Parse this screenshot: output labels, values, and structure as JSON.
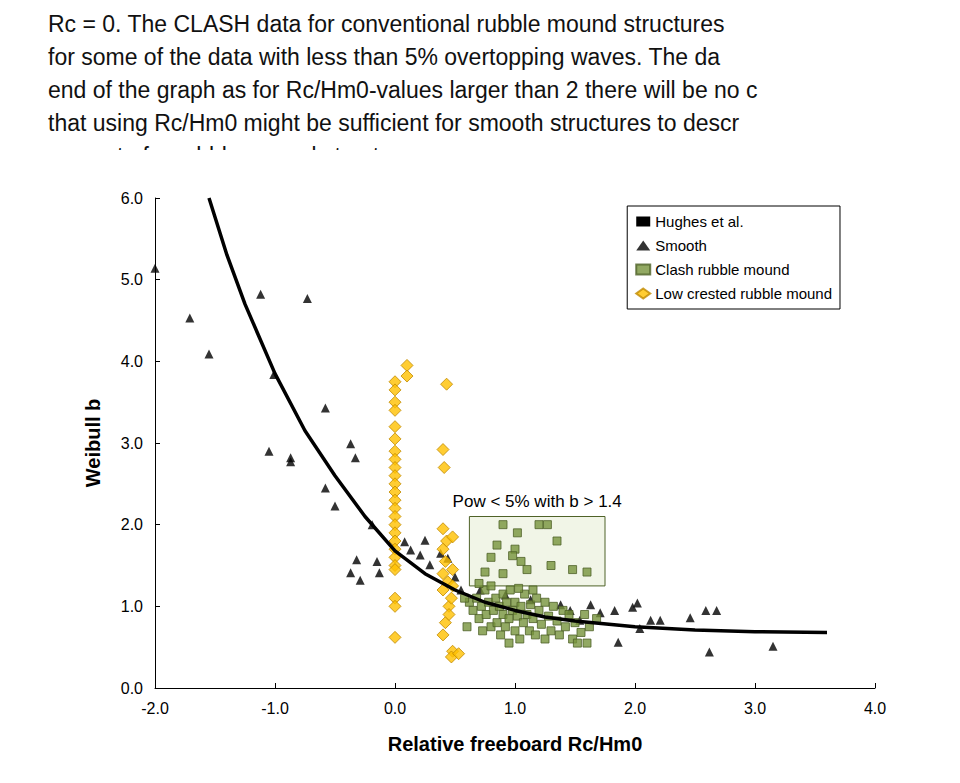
{
  "text_lines": [
    "Rc = 0. The CLASH data for conventional rubble mound structures",
    "for some of the data with less than 5% overtopping waves. The da",
    "end of the graph as for Rc/Hm0-values larger than 2 there will be no c",
    "that using Rc/Hm0 might be sufficient for smooth structures to descr",
    "accurate for rubble mound structures."
  ],
  "chart_data": {
    "type": "scatter",
    "x_label": "Relative freeboard Rc/Hm0",
    "y_label": "Weibull b",
    "xlim": [
      -2.0,
      4.0
    ],
    "xticks": [
      {
        "value": -2,
        "label": "-2.0"
      },
      {
        "value": -1,
        "label": "-1.0"
      },
      {
        "value": 0,
        "label": "0.0"
      },
      {
        "value": 1,
        "label": "1.0"
      },
      {
        "value": 2,
        "label": "2.0"
      },
      {
        "value": 3,
        "label": "3.0"
      },
      {
        "value": 4,
        "label": "4.0"
      }
    ],
    "ylim": [
      0.0,
      6.0
    ],
    "yticks": [
      {
        "value": 0,
        "label": "0.0"
      },
      {
        "value": 1,
        "label": "1.0"
      },
      {
        "value": 2,
        "label": "2.0"
      },
      {
        "value": 3,
        "label": "3.0"
      },
      {
        "value": 4,
        "label": "4.0"
      },
      {
        "value": 5,
        "label": "5.0"
      },
      {
        "value": 6,
        "label": "6.0"
      }
    ],
    "grid": false,
    "legend": "upper right",
    "annotation": {
      "text": "Pow < 5% with b > 1.4",
      "x": [
        0.62,
        1.75
      ],
      "y": [
        1.25,
        2.1
      ]
    },
    "series": [
      {
        "name": "Hughes et al.",
        "type": "line",
        "marker": "none",
        "line_style": "solid",
        "color": "#000000",
        "values": [
          [
            -1.55,
            6.0
          ],
          [
            -1.4,
            5.3
          ],
          [
            -1.25,
            4.7
          ],
          [
            -1.0,
            3.85
          ],
          [
            -0.75,
            3.15
          ],
          [
            -0.5,
            2.6
          ],
          [
            -0.25,
            2.1
          ],
          [
            0,
            1.68
          ],
          [
            0.25,
            1.4
          ],
          [
            0.5,
            1.2
          ],
          [
            0.75,
            1.05
          ],
          [
            1.0,
            0.95
          ],
          [
            1.25,
            0.87
          ],
          [
            1.5,
            0.82
          ],
          [
            2.0,
            0.75
          ],
          [
            2.5,
            0.71
          ],
          [
            3.0,
            0.69
          ],
          [
            3.6,
            0.68
          ]
        ]
      },
      {
        "name": "Smooth",
        "type": "scatter",
        "marker": "triangle",
        "color": "#000000",
        "values": [
          [
            -2.0,
            5.14
          ],
          [
            -1.71,
            4.53
          ],
          [
            -1.55,
            4.09
          ],
          [
            -1.12,
            4.82
          ],
          [
            -1.01,
            3.84
          ],
          [
            -1.05,
            2.9
          ],
          [
            -0.87,
            2.82
          ],
          [
            -0.87,
            2.77
          ],
          [
            -0.73,
            4.77
          ],
          [
            -0.58,
            3.43
          ],
          [
            -0.58,
            2.45
          ],
          [
            -0.5,
            2.23
          ],
          [
            -0.37,
            2.99
          ],
          [
            -0.33,
            2.82
          ],
          [
            -0.32,
            1.57
          ],
          [
            -0.37,
            1.41
          ],
          [
            -0.29,
            1.32
          ],
          [
            -0.19,
            2.0
          ],
          [
            -0.15,
            1.55
          ],
          [
            -0.13,
            1.41
          ],
          [
            0.08,
            1.79
          ],
          [
            0.13,
            1.69
          ],
          [
            0.21,
            1.63
          ],
          [
            0.25,
            1.81
          ],
          [
            0.29,
            1.51
          ],
          [
            0.38,
            1.65
          ],
          [
            0.44,
            1.59
          ],
          [
            0.5,
            1.36
          ],
          [
            0.55,
            1.2
          ],
          [
            0.71,
            1.2
          ],
          [
            0.92,
            1.14
          ],
          [
            1.13,
            1.08
          ],
          [
            1.38,
            1.02
          ],
          [
            1.46,
            0.95
          ],
          [
            1.54,
            0.83
          ],
          [
            1.63,
            1.02
          ],
          [
            1.71,
            0.92
          ],
          [
            1.83,
            0.95
          ],
          [
            1.86,
            0.56
          ],
          [
            1.98,
            0.99
          ],
          [
            2.02,
            1.04
          ],
          [
            2.04,
            0.73
          ],
          [
            2.13,
            0.83
          ],
          [
            2.21,
            0.83
          ],
          [
            2.46,
            0.86
          ],
          [
            2.59,
            0.95
          ],
          [
            2.62,
            0.44
          ],
          [
            2.68,
            0.95
          ],
          [
            3.15,
            0.51
          ]
        ]
      },
      {
        "name": "Clash rubble mound",
        "type": "scatter",
        "marker": "rect",
        "color": "#77933c",
        "values": [
          [
            0.62,
            1.05
          ],
          [
            0.65,
            0.95
          ],
          [
            0.68,
            1.1
          ],
          [
            0.7,
            0.85
          ],
          [
            0.72,
            1.0
          ],
          [
            0.75,
            1.2
          ],
          [
            0.76,
            0.9
          ],
          [
            0.78,
            1.05
          ],
          [
            0.8,
            0.75
          ],
          [
            0.8,
            1.25
          ],
          [
            0.82,
            0.95
          ],
          [
            0.84,
            1.1
          ],
          [
            0.85,
            0.8
          ],
          [
            0.87,
            1.0
          ],
          [
            0.88,
            0.65
          ],
          [
            0.9,
            1.15
          ],
          [
            0.9,
            0.9
          ],
          [
            0.92,
            0.75
          ],
          [
            0.93,
            1.05
          ],
          [
            0.95,
            0.85
          ],
          [
            0.96,
            1.2
          ],
          [
            0.98,
            0.95
          ],
          [
            1.0,
            0.7
          ],
          [
            1.0,
            1.05
          ],
          [
            1.02,
            0.88
          ],
          [
            1.04,
            0.6
          ],
          [
            1.05,
            1.0
          ],
          [
            1.07,
            0.8
          ],
          [
            1.08,
            1.15
          ],
          [
            1.1,
            0.9
          ],
          [
            1.12,
            0.7
          ],
          [
            1.13,
            1.02
          ],
          [
            1.15,
            0.85
          ],
          [
            1.17,
            0.65
          ],
          [
            1.18,
            1.1
          ],
          [
            1.2,
            0.95
          ],
          [
            1.22,
            0.78
          ],
          [
            1.25,
            0.6
          ],
          [
            1.25,
            1.05
          ],
          [
            1.28,
            0.88
          ],
          [
            1.3,
            0.7
          ],
          [
            1.32,
            1.0
          ],
          [
            1.35,
            0.82
          ],
          [
            1.37,
            0.65
          ],
          [
            1.4,
            0.95
          ],
          [
            1.42,
            0.75
          ],
          [
            1.45,
            0.9
          ],
          [
            1.48,
            0.6
          ],
          [
            1.5,
            0.8
          ],
          [
            1.55,
            0.68
          ],
          [
            1.58,
            0.9
          ],
          [
            1.62,
            0.75
          ],
          [
            1.68,
            0.85
          ],
          [
            0.6,
            0.75
          ],
          [
            0.58,
            1.1
          ],
          [
            0.73,
            0.7
          ],
          [
            1.03,
            1.22
          ],
          [
            1.15,
            1.2
          ],
          [
            0.7,
            1.28
          ],
          [
            0.95,
            0.55
          ],
          [
            1.52,
            0.55
          ],
          [
            1.6,
            0.55
          ],
          [
            0.9,
            2.0
          ],
          [
            0.85,
            1.75
          ],
          [
            1.02,
            1.9
          ],
          [
            1.0,
            1.7
          ],
          [
            0.98,
            1.62
          ],
          [
            1.2,
            2.0
          ],
          [
            1.27,
            2.0
          ],
          [
            1.35,
            1.8
          ],
          [
            1.3,
            1.5
          ],
          [
            0.9,
            1.4
          ],
          [
            1.1,
            1.45
          ],
          [
            1.48,
            1.45
          ],
          [
            1.6,
            1.42
          ],
          [
            0.8,
            1.6
          ],
          [
            0.75,
            1.42
          ],
          [
            1.05,
            1.55
          ]
        ]
      },
      {
        "name": "Low crested rubble mound",
        "type": "scatter",
        "marker": "diamond",
        "color": "#ffc000",
        "values": [
          [
            0,
            3.75
          ],
          [
            0,
            3.65
          ],
          [
            0,
            3.5
          ],
          [
            0,
            3.4
          ],
          [
            0,
            3.2
          ],
          [
            0,
            3.05
          ],
          [
            0,
            2.9
          ],
          [
            0,
            2.8
          ],
          [
            0,
            2.7
          ],
          [
            0,
            2.6
          ],
          [
            0,
            2.5
          ],
          [
            0,
            2.4
          ],
          [
            0,
            2.3
          ],
          [
            0,
            2.2
          ],
          [
            0,
            2.1
          ],
          [
            0,
            2.0
          ],
          [
            0,
            1.9
          ],
          [
            0,
            1.8
          ],
          [
            0,
            1.7
          ],
          [
            0,
            1.6
          ],
          [
            0,
            1.5
          ],
          [
            0,
            1.45
          ],
          [
            0,
            1.1
          ],
          [
            0,
            1.0
          ],
          [
            0,
            0.62
          ],
          [
            0.1,
            3.95
          ],
          [
            0.1,
            3.82
          ],
          [
            0.43,
            3.72
          ],
          [
            0.4,
            2.92
          ],
          [
            0.41,
            2.7
          ],
          [
            0.4,
            1.95
          ],
          [
            0.43,
            1.8
          ],
          [
            0.4,
            1.7
          ],
          [
            0.42,
            1.55
          ],
          [
            0.4,
            1.4
          ],
          [
            0.44,
            1.3
          ],
          [
            0.45,
            1.0
          ],
          [
            0.42,
            0.8
          ],
          [
            0.4,
            0.65
          ],
          [
            0.48,
            1.85
          ],
          [
            0.48,
            1.45
          ],
          [
            0.48,
            1.25
          ],
          [
            0.47,
            1.1
          ],
          [
            0.48,
            0.45
          ],
          [
            0.47,
            0.38
          ],
          [
            0.53,
            0.42
          ],
          [
            0.4,
            1.2
          ],
          [
            0.45,
            0.9
          ]
        ]
      }
    ]
  }
}
